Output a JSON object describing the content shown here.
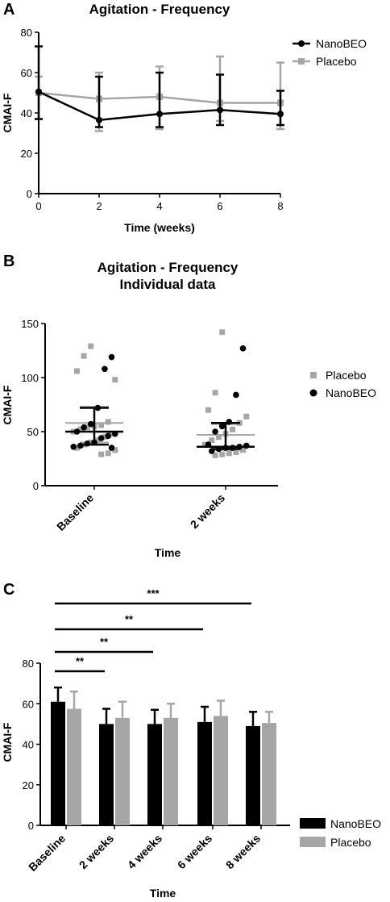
{
  "colors": {
    "nanobeo": "#000000",
    "placebo": "#a6a6a6"
  },
  "panels": {
    "a": "A",
    "b": "B",
    "c": "C"
  },
  "chart_data": [
    {
      "type": "line",
      "title": "Agitation - Frequency",
      "xlabel": "Time (weeks)",
      "ylabel": "CMAI-F",
      "xlim": [
        0,
        8
      ],
      "ylim": [
        0,
        80
      ],
      "xticks": [
        "0",
        "2",
        "4",
        "6",
        "8"
      ],
      "yticks": [
        "0",
        "20",
        "40",
        "60",
        "80"
      ],
      "x": [
        0,
        2,
        4,
        6,
        8
      ],
      "legend_position": "top-right",
      "series": [
        {
          "name": "NanoBEO",
          "values": [
            50.5,
            36.5,
            39.5,
            41.5,
            39.5
          ],
          "err_low": [
            37,
            33,
            33,
            34,
            34
          ],
          "err_high": [
            73,
            58,
            60,
            59,
            51
          ]
        },
        {
          "name": "Placebo",
          "values": [
            50,
            47,
            48,
            45,
            45
          ],
          "err_low": [
            37,
            31,
            32,
            36,
            32
          ],
          "err_high": [
            58,
            60,
            63,
            68,
            65
          ]
        }
      ]
    },
    {
      "type": "scatter",
      "title": "Agitation - Frequency",
      "subtitle": "Individual data",
      "xlabel": "Time",
      "ylabel": "CMAI-F",
      "ylim": [
        0,
        150
      ],
      "yticks": [
        "0",
        "50",
        "100",
        "150"
      ],
      "categories": [
        "Baseline",
        "2 weeks"
      ],
      "legend_position": "right",
      "series": [
        {
          "name": "Placebo",
          "median": [
            58,
            47
          ],
          "q1": [
            40,
            33
          ],
          "q3": [
            73,
            57
          ],
          "points": [
            [
              0,
              129
            ],
            [
              0,
              120
            ],
            [
              0,
              106
            ],
            [
              0,
              98
            ],
            [
              0,
              59
            ],
            [
              0,
              56
            ],
            [
              0,
              55
            ],
            [
              0,
              54
            ],
            [
              0,
              52
            ],
            [
              0,
              50
            ],
            [
              0,
              48
            ],
            [
              0,
              45
            ],
            [
              0,
              42
            ],
            [
              0,
              40
            ],
            [
              0,
              38
            ],
            [
              0,
              35
            ],
            [
              0,
              33
            ],
            [
              0,
              30
            ],
            [
              0,
              29
            ],
            [
              1,
              142
            ],
            [
              1,
              86
            ],
            [
              1,
              70
            ],
            [
              1,
              64
            ],
            [
              1,
              58
            ],
            [
              1,
              52
            ],
            [
              1,
              48
            ],
            [
              1,
              45
            ],
            [
              1,
              42
            ],
            [
              1,
              38
            ],
            [
              1,
              33
            ],
            [
              1,
              31
            ],
            [
              1,
              30
            ],
            [
              1,
              29
            ],
            [
              1,
              28
            ]
          ]
        },
        {
          "name": "NanoBEO",
          "median": [
            50,
            36
          ],
          "q1": [
            38,
            34
          ],
          "q3": [
            72,
            58
          ],
          "points": [
            [
              0,
              119
            ],
            [
              0,
              108
            ],
            [
              0,
              72
            ],
            [
              0,
              57
            ],
            [
              0,
              54
            ],
            [
              0,
              50
            ],
            [
              0,
              48
            ],
            [
              0,
              46
            ],
            [
              0,
              44
            ],
            [
              0,
              40
            ],
            [
              0,
              39
            ],
            [
              0,
              37
            ],
            [
              0,
              36
            ],
            [
              0,
              35
            ],
            [
              1,
              127
            ],
            [
              1,
              84
            ],
            [
              1,
              59
            ],
            [
              1,
              55
            ],
            [
              1,
              50
            ],
            [
              1,
              38
            ],
            [
              1,
              37
            ],
            [
              1,
              36
            ],
            [
              1,
              35
            ],
            [
              1,
              35
            ],
            [
              1,
              34
            ],
            [
              1,
              32
            ]
          ]
        }
      ]
    },
    {
      "type": "bar",
      "xlabel": "Time",
      "ylabel": "CMAI-F",
      "ylim": [
        0,
        80
      ],
      "yticks": [
        "0",
        "20",
        "40",
        "60",
        "80"
      ],
      "categories": [
        "Baseline",
        "2 weeks",
        "4 weeks",
        "6 weeks",
        "8 weeks"
      ],
      "legend_position": "bottom-right",
      "series": [
        {
          "name": "NanoBEO",
          "values": [
            61,
            50,
            50,
            51,
            49
          ],
          "err_high": [
            68,
            57.5,
            57,
            58.5,
            56
          ]
        },
        {
          "name": "Placebo",
          "values": [
            57.5,
            53,
            53,
            54,
            50.5
          ],
          "err_high": [
            66,
            61,
            60,
            61.5,
            56
          ]
        }
      ],
      "annotations": [
        {
          "from": "Baseline",
          "to": "2 weeks",
          "label": "**"
        },
        {
          "from": "Baseline",
          "to": "4 weeks",
          "label": "**"
        },
        {
          "from": "Baseline",
          "to": "6 weeks",
          "label": "**"
        },
        {
          "from": "Baseline",
          "to": "8 weeks",
          "label": "***"
        }
      ]
    }
  ]
}
